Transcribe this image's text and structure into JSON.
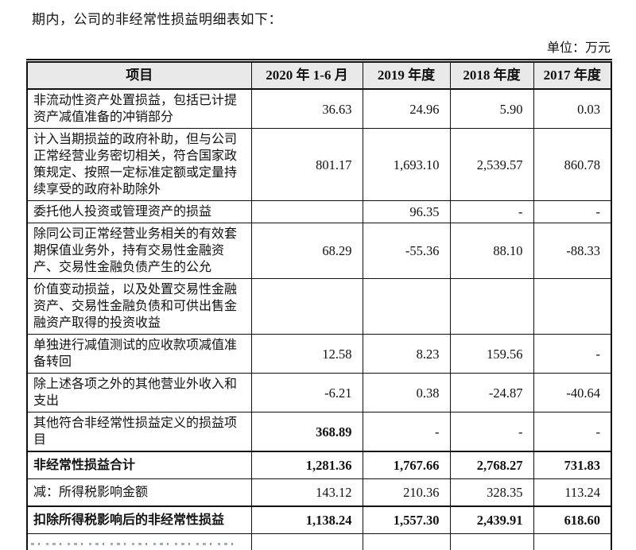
{
  "page": {
    "intro_text": "期内，公司的非经常性损益明细表如下：",
    "unit_label": "单位：万元"
  },
  "table": {
    "headers": [
      "项目",
      "2020 年 1-6 月",
      "2019 年度",
      "2018 年度",
      "2017 年度"
    ],
    "rows": [
      {
        "label": "非流动性资产处置损益，包括已计提资产减值准备的冲销部分",
        "values": [
          "36.63",
          "24.96",
          "5.90",
          "0.03"
        ]
      },
      {
        "label": "计入当期损益的政府补助，但与公司正常经营业务密切相关，符合国家政策规定、按照一定标准定额或定量持续享受的政府补助除外",
        "values": [
          "801.17",
          "1,693.10",
          "2,539.57",
          "860.78"
        ]
      },
      {
        "label": "委托他人投资或管理资产的损益",
        "values": [
          "",
          "96.35",
          "-",
          "-"
        ]
      },
      {
        "label": "除同公司正常经营业务相关的有效套期保值业务外，持有交易性金融资产、交易性金融负债产生的公允",
        "values": [
          "68.29",
          "-55.36",
          "88.10",
          "-88.33"
        ]
      },
      {
        "label": "价值变动损益，以及处置交易性金融资产、交易性金融负债和可供出售金融资产取得的投资收益",
        "values": [
          "",
          "",
          "",
          ""
        ]
      },
      {
        "label": "单独进行减值测试的应收款项减值准备转回",
        "values": [
          "12.58",
          "8.23",
          "159.56",
          "-"
        ]
      },
      {
        "label": "除上述各项之外的其他营业外收入和支出",
        "values": [
          "-6.21",
          "0.38",
          "-24.87",
          "-40.64"
        ]
      },
      {
        "label": "其他符合非经常性损益定义的损益项目",
        "values": [
          "368.89",
          "-",
          "-",
          "-"
        ],
        "value_bold": [
          true,
          false,
          false,
          false
        ]
      },
      {
        "label": "非经常性损益合计",
        "values": [
          "1,281.36",
          "1,767.66",
          "2,768.27",
          "731.83"
        ],
        "bold": true,
        "thick_top": true
      },
      {
        "label": "减：所得税影响金额",
        "values": [
          "143.12",
          "210.36",
          "328.35",
          "113.24"
        ]
      },
      {
        "label": "扣除所得税影响后的非经常性损益",
        "values": [
          "1,138.24",
          "1,557.30",
          "2,439.91",
          "618.60"
        ],
        "bold": true,
        "thick_top": true
      }
    ]
  }
}
